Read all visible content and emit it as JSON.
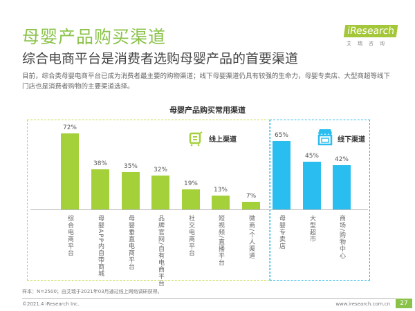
{
  "header": {
    "title": "母婴产品购买渠道",
    "subtitle": "综合电商平台是消费者选购母婴产品的首要渠道",
    "description": "目前，综合类母婴电商平台已成为消费者最主要的购物渠道；线下母婴渠道仍具有较强的生命力，母婴专卖店、大型商超等线下门店也是消费者购物的主要渠道选择。",
    "logo_text": "iResearch",
    "logo_cn": "艾瑞咨询"
  },
  "chart_data": {
    "type": "bar",
    "title": "母婴产品购买常用渠道",
    "categories": [
      "综合电商平台",
      "母婴APP内自带商城",
      "母婴垂直电商平台",
      "品牌官网/自有电商平台",
      "社交电商平台",
      "短视频/直播平台",
      "微商/个人渠道",
      "母婴专卖店",
      "大型超市",
      "商场/购物中心"
    ],
    "values": [
      72,
      38,
      35,
      32,
      19,
      13,
      7,
      65,
      45,
      42
    ],
    "value_labels": [
      "72%",
      "38%",
      "35%",
      "32%",
      "19%",
      "13%",
      "7%",
      "65%",
      "45%",
      "42%"
    ],
    "groups": [
      {
        "name": "线上渠道",
        "color": "#a4d13a",
        "indices": [
          0,
          1,
          2,
          3,
          4,
          5,
          6
        ],
        "icon": "shopping-cart-icon"
      },
      {
        "name": "线下渠道",
        "color": "#29bdf0",
        "indices": [
          7,
          8,
          9
        ],
        "icon": "storefront-icon"
      }
    ],
    "ylim": [
      0,
      80
    ]
  },
  "footer": {
    "note": "样本：N=2500；由艾瑞于2021年03月通过线上网络调研获得。",
    "copyright": "©2021.4 iResearch Inc.",
    "website": "www.iresearch.com.cn",
    "page": "27"
  }
}
